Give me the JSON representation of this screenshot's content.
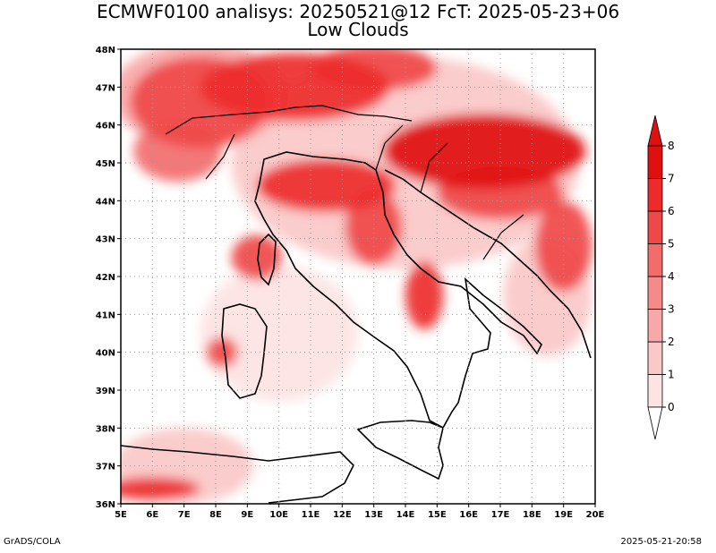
{
  "chart_data": {
    "type": "heatmap",
    "title": "ECMWF0100 analisys: 20250521@12 FcT: 2025-05-23+06",
    "subtitle": "Low Clouds",
    "x_ticks": [
      "5E",
      "6E",
      "7E",
      "8E",
      "9E",
      "10E",
      "11E",
      "12E",
      "13E",
      "14E",
      "15E",
      "16E",
      "17E",
      "18E",
      "19E",
      "20E"
    ],
    "y_ticks": [
      "36N",
      "37N",
      "38N",
      "39N",
      "40N",
      "41N",
      "42N",
      "43N",
      "44N",
      "45N",
      "46N",
      "47N",
      "48N"
    ],
    "xlim": [
      5,
      20
    ],
    "ylim": [
      36,
      48
    ],
    "grid": true,
    "colorbar": {
      "levels": [
        "0",
        "1",
        "2",
        "3",
        "4",
        "5",
        "6",
        "7",
        "8"
      ],
      "colors": [
        "#ffffff",
        "#fde3e3",
        "#fbc8c8",
        "#f8a8a8",
        "#f58a8a",
        "#f26c6c",
        "#f04848",
        "#ee2b2b",
        "#e01010"
      ],
      "placement": "right",
      "extend": "both"
    },
    "colors": {
      "land": "#ffffff",
      "coast": "#000000",
      "grid": "#999999"
    },
    "regions": [
      {
        "lon": 7.5,
        "lat": 46.6,
        "rx": 2.2,
        "ry": 1.2,
        "level": 6
      },
      {
        "lon": 6.8,
        "lat": 45.3,
        "rx": 1.4,
        "ry": 0.8,
        "level": 5
      },
      {
        "lon": 10.5,
        "lat": 47.0,
        "rx": 3.0,
        "ry": 0.9,
        "level": 7
      },
      {
        "lon": 13.0,
        "lat": 47.5,
        "rx": 2.0,
        "ry": 0.6,
        "level": 6
      },
      {
        "lon": 11.5,
        "lat": 44.4,
        "rx": 2.2,
        "ry": 0.7,
        "level": 7
      },
      {
        "lon": 9.3,
        "lat": 42.5,
        "rx": 0.8,
        "ry": 0.6,
        "level": 6
      },
      {
        "lon": 13.0,
        "lat": 43.3,
        "rx": 0.9,
        "ry": 1.0,
        "level": 6
      },
      {
        "lon": 14.6,
        "lat": 41.5,
        "rx": 0.6,
        "ry": 0.9,
        "level": 7
      },
      {
        "lon": 16.5,
        "lat": 45.3,
        "rx": 3.2,
        "ry": 1.0,
        "level": 8
      },
      {
        "lon": 17.0,
        "lat": 44.2,
        "rx": 2.0,
        "ry": 0.7,
        "level": 6
      },
      {
        "lon": 19.0,
        "lat": 42.8,
        "rx": 0.9,
        "ry": 1.2,
        "level": 6
      },
      {
        "lon": 8.2,
        "lat": 40.0,
        "rx": 0.5,
        "ry": 0.4,
        "level": 6
      },
      {
        "lon": 6.0,
        "lat": 36.4,
        "rx": 1.5,
        "ry": 0.3,
        "level": 7
      },
      {
        "lon": 7.5,
        "lat": 46.8,
        "rx": 2.8,
        "ry": 1.4,
        "level": 3
      },
      {
        "lon": 14.0,
        "lat": 45.0,
        "rx": 5.5,
        "ry": 2.8,
        "level": 2
      },
      {
        "lon": 10.0,
        "lat": 40.5,
        "rx": 2.5,
        "ry": 1.8,
        "level": 1
      },
      {
        "lon": 7.0,
        "lat": 37.0,
        "rx": 2.2,
        "ry": 1.0,
        "level": 2
      },
      {
        "lon": 18.5,
        "lat": 41.5,
        "rx": 1.4,
        "ry": 1.6,
        "level": 2
      }
    ]
  },
  "footer": {
    "left": "GrADS/COLA",
    "right": "2025-05-21-20:58"
  }
}
